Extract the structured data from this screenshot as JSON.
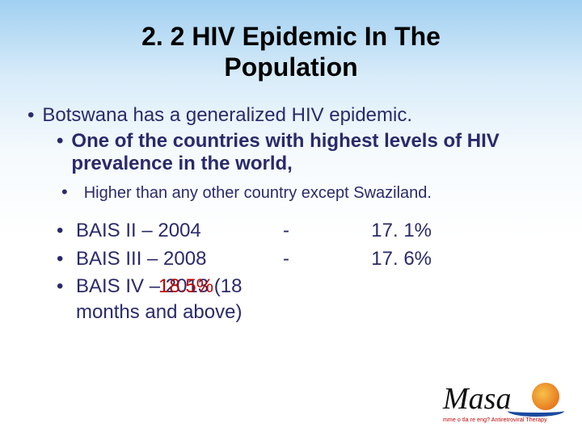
{
  "title": "2. 2  HIV Epidemic In The Population",
  "bullets": {
    "l1": "Botswana has a generalized HIV epidemic.",
    "l2": "One of the countries with highest levels of HIV prevalence in the world,",
    "l3": "Higher than any other country except Swaziland."
  },
  "rows": [
    {
      "name": "BAIS II   – 2004",
      "dash": "-",
      "pct": "17. 1%"
    },
    {
      "name": "BAIS III  – 2008",
      "dash": "-",
      "pct": "17. 6%"
    }
  ],
  "bais4": {
    "base": "BAIS IV  – 2013    (18",
    "overlay": "18.5%",
    "cont": "months and above)"
  },
  "logo": {
    "brand": "Masa",
    "tag": "mme o tla re eng? Antiretroviral Therapy"
  },
  "colors": {
    "text": "#2a2a6a",
    "accent": "#c00000"
  }
}
